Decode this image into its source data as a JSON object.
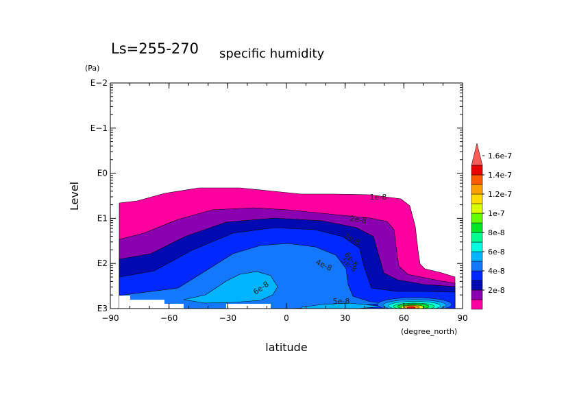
{
  "chart_data": {
    "type": "contour",
    "title": "Ls=255-270",
    "subtitle": "specific humidity",
    "xlabel": "latitude",
    "xunit": "(degree_north)",
    "ylabel": "Level",
    "yunit": "(Pa)",
    "y_scale": "log",
    "xlim": [
      -90,
      90
    ],
    "ylim_pa": [
      1000,
      0.01
    ],
    "x_ticks": [
      "−90",
      "−60",
      "−30",
      "0",
      "30",
      "60",
      "90"
    ],
    "y_ticks": [
      "E3",
      "E2",
      "E1",
      "E0",
      "E−1",
      "E−2"
    ],
    "colorbar": {
      "extend": "max",
      "interval": 2e-08,
      "labels": [
        "2e-8",
        "4e-8",
        "6e-8",
        "8e-8",
        "1e-7",
        "1.2e-7",
        "1.4e-7",
        "1.6e-7"
      ],
      "colors": [
        "#ff00a0",
        "#8a00b0",
        "#000ab0",
        "#0028ff",
        "#1478ff",
        "#00b4ff",
        "#00ffe0",
        "#00ff8c",
        "#00e628",
        "#64ff00",
        "#dcff00",
        "#ffdc00",
        "#ffa000",
        "#ff5a00",
        "#e60000",
        "#ff5a5a"
      ]
    },
    "contour_labels": [
      "1e-8",
      "2e-8",
      "3e-8",
      "4e-8",
      "5e-8",
      "6e-8",
      "5e-8",
      "6e-8"
    ]
  }
}
